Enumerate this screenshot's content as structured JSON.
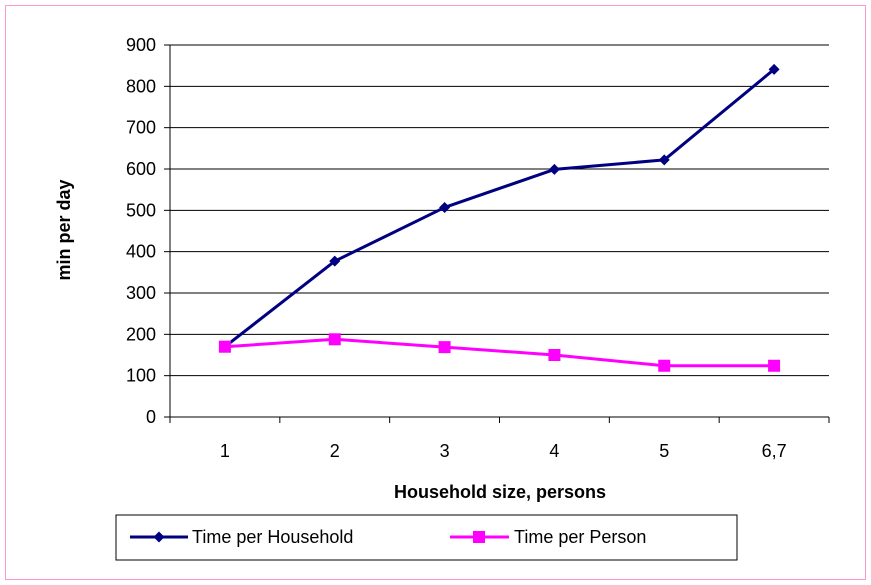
{
  "colors": {
    "border": "#ff99cc",
    "series1": "#000080",
    "series2": "#ff00ff"
  },
  "chart_data": {
    "type": "line",
    "categories": [
      "1",
      "2",
      "3",
      "4",
      "5",
      "6,7"
    ],
    "series": [
      {
        "name": "Time per Household",
        "values": [
          170,
          377,
          507,
          599,
          622,
          841
        ],
        "color": "#000080",
        "marker": "diamond"
      },
      {
        "name": "Time per Person",
        "values": [
          170,
          188,
          169,
          150,
          124,
          124
        ],
        "color": "#ff00ff",
        "marker": "square"
      }
    ],
    "xlabel": "Household size, persons",
    "ylabel": "min per day",
    "ylim": [
      0,
      900
    ],
    "yticks": [
      0,
      100,
      200,
      300,
      400,
      500,
      600,
      700,
      800,
      900
    ],
    "grid": true,
    "legend": "bottom"
  }
}
